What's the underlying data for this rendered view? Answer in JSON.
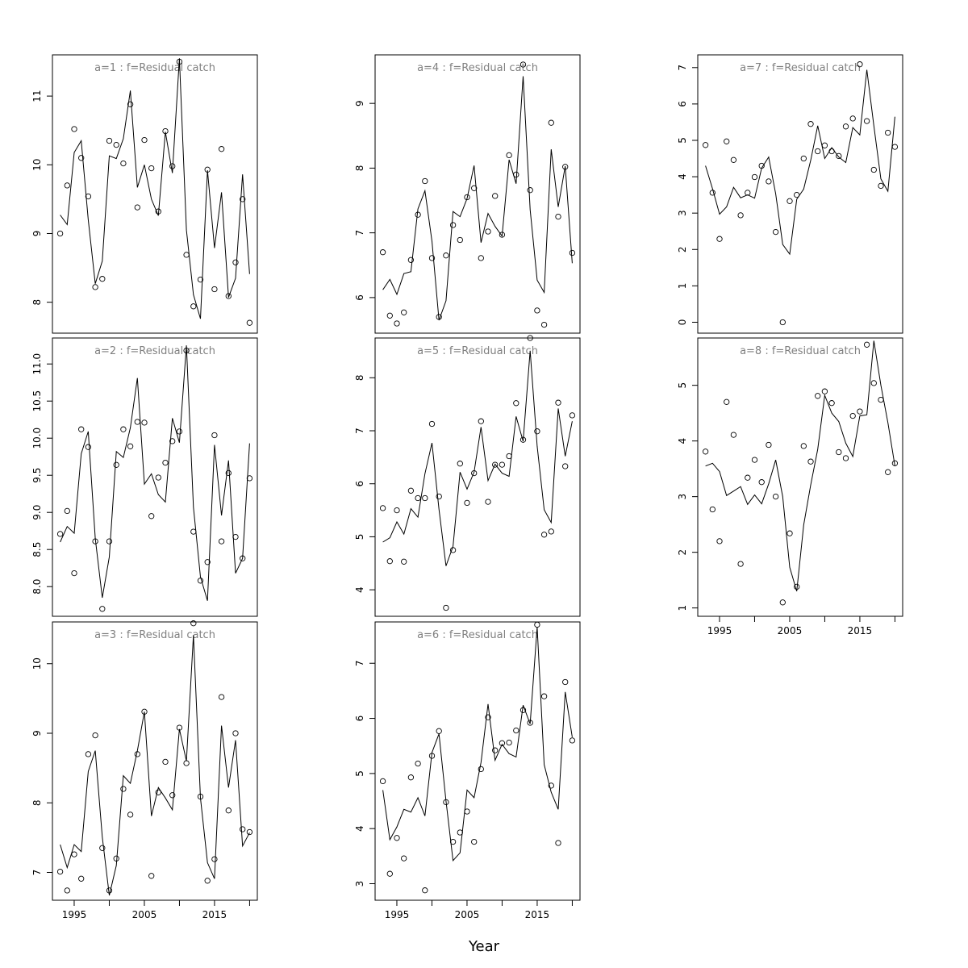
{
  "figure": {
    "xlabel": "Year"
  },
  "colors": {
    "line": "#000000",
    "points": "#000000",
    "title": "#808080",
    "background": "#ffffff"
  },
  "chart_data": [
    {
      "type": "scatter",
      "title": "a=1  :  f=Residual catch",
      "x": [
        1993,
        1994,
        1995,
        1996,
        1997,
        1998,
        1999,
        2000,
        2001,
        2002,
        2003,
        2004,
        2005,
        2006,
        2007,
        2008,
        2009,
        2010,
        2011,
        2012,
        2013,
        2014,
        2015,
        2016,
        2017,
        2018,
        2019,
        2020
      ],
      "series": [
        {
          "style": "points",
          "values": [
            9.0,
            9.7,
            10.52,
            10.1,
            9.54,
            8.22,
            8.34,
            10.35,
            10.29,
            10.02,
            10.88,
            9.38,
            10.36,
            9.95,
            9.32,
            10.49,
            9.98,
            11.5,
            8.69,
            7.94,
            8.33,
            9.93,
            8.19,
            10.23,
            8.09,
            8.58,
            9.5,
            7.7
          ]
        },
        {
          "style": "line",
          "values": [
            9.27,
            9.13,
            10.18,
            10.35,
            9.2,
            8.27,
            8.6,
            10.13,
            10.09,
            10.38,
            11.08,
            9.67,
            10.0,
            9.5,
            9.26,
            10.48,
            9.88,
            11.55,
            9.05,
            8.11,
            7.76,
            9.92,
            8.79,
            9.6,
            8.07,
            8.35,
            9.86,
            8.41
          ]
        }
      ],
      "yticks": [
        8,
        9,
        10,
        11
      ],
      "ylim": [
        7.55,
        11.6
      ],
      "xlim": [
        1991.9,
        2021.1
      ],
      "show_xticks": false
    },
    {
      "type": "scatter",
      "title": "a=2  :  f=Residual catch",
      "x": [
        1993,
        1994,
        1995,
        1996,
        1997,
        1998,
        1999,
        2000,
        2001,
        2002,
        2003,
        2004,
        2005,
        2006,
        2007,
        2008,
        2009,
        2010,
        2011,
        2012,
        2013,
        2014,
        2015,
        2016,
        2017,
        2018,
        2019,
        2020
      ],
      "series": [
        {
          "style": "points",
          "values": [
            8.71,
            9.02,
            8.18,
            10.12,
            9.88,
            8.61,
            7.7,
            8.61,
            9.64,
            10.12,
            9.89,
            10.22,
            10.21,
            8.95,
            9.47,
            9.67,
            9.96,
            10.09,
            11.18,
            8.74,
            8.08,
            8.33,
            10.04,
            8.61,
            9.53,
            8.67,
            8.38,
            9.46
          ]
        },
        {
          "style": "line",
          "values": [
            8.6,
            8.81,
            8.72,
            9.79,
            10.09,
            8.65,
            7.85,
            8.4,
            9.82,
            9.74,
            10.14,
            10.81,
            9.38,
            9.52,
            9.24,
            9.14,
            10.27,
            9.94,
            11.25,
            9.07,
            8.13,
            7.81,
            9.91,
            8.96,
            9.7,
            8.18,
            8.38,
            9.93
          ]
        }
      ],
      "yticks": [
        8.0,
        8.5,
        9.0,
        9.5,
        10.0,
        10.5,
        11.0
      ],
      "ytick_labels": [
        "8.0",
        "8.5",
        "9.0",
        "9.5",
        "10.0",
        "10.5",
        "11.0"
      ],
      "ylim": [
        7.6,
        11.35
      ],
      "xlim": [
        1991.9,
        2021.1
      ],
      "show_xticks": false
    },
    {
      "type": "scatter",
      "title": "a=3  :  f=Residual catch",
      "x": [
        1993,
        1994,
        1995,
        1996,
        1997,
        1998,
        1999,
        2000,
        2001,
        2002,
        2003,
        2004,
        2005,
        2006,
        2007,
        2008,
        2009,
        2010,
        2011,
        2012,
        2013,
        2014,
        2015,
        2016,
        2017,
        2018,
        2019,
        2020
      ],
      "series": [
        {
          "style": "points",
          "values": [
            7.01,
            6.74,
            7.26,
            6.91,
            8.7,
            8.97,
            7.35,
            6.74,
            7.2,
            8.2,
            7.83,
            8.7,
            9.31,
            6.95,
            8.15,
            8.59,
            8.11,
            9.08,
            8.57,
            10.58,
            8.09,
            6.88,
            7.19,
            9.52,
            7.89,
            9.0,
            7.62,
            7.58
          ]
        },
        {
          "style": "line",
          "values": [
            7.4,
            7.07,
            7.4,
            7.3,
            8.45,
            8.75,
            7.51,
            6.67,
            7.1,
            8.39,
            8.28,
            8.75,
            9.31,
            7.81,
            8.22,
            8.07,
            7.9,
            9.06,
            8.6,
            10.41,
            8.07,
            7.14,
            6.91,
            9.11,
            8.22,
            8.9,
            7.38,
            7.57
          ]
        }
      ],
      "yticks": [
        7,
        8,
        9,
        10
      ],
      "ylim": [
        6.6,
        10.6
      ],
      "xlim": [
        1991.9,
        2021.1
      ],
      "xticks": [
        1995,
        2005,
        2015
      ],
      "show_xticks": true
    },
    {
      "type": "scatter",
      "title": "a=4  :  f=Residual catch",
      "x": [
        1993,
        1994,
        1995,
        1996,
        1997,
        1998,
        1999,
        2000,
        2001,
        2002,
        2003,
        2004,
        2005,
        2006,
        2007,
        2008,
        2009,
        2010,
        2011,
        2012,
        2013,
        2014,
        2015,
        2016,
        2017,
        2018,
        2019,
        2020
      ],
      "series": [
        {
          "style": "points",
          "values": [
            6.7,
            5.72,
            5.6,
            5.77,
            6.58,
            7.28,
            7.8,
            6.61,
            5.7,
            6.65,
            7.12,
            6.89,
            7.55,
            7.69,
            6.61,
            7.02,
            7.57,
            6.97,
            8.2,
            7.9,
            9.6,
            7.66,
            5.8,
            5.58,
            8.7,
            7.25,
            8.02,
            6.69
          ]
        },
        {
          "style": "line",
          "values": [
            6.12,
            6.28,
            6.05,
            6.37,
            6.4,
            7.37,
            7.65,
            6.87,
            5.65,
            5.95,
            7.33,
            7.25,
            7.53,
            8.04,
            6.85,
            7.3,
            7.1,
            6.95,
            8.13,
            7.76,
            9.42,
            7.36,
            6.27,
            6.08,
            8.29,
            7.4,
            8.03,
            6.53
          ]
        }
      ],
      "yticks": [
        6,
        7,
        8,
        9
      ],
      "ylim": [
        5.45,
        9.75
      ],
      "xlim": [
        1991.9,
        2021.1
      ],
      "show_xticks": false
    },
    {
      "type": "scatter",
      "title": "a=5  :  f=Residual catch",
      "x": [
        1993,
        1994,
        1995,
        1996,
        1997,
        1998,
        1999,
        2000,
        2001,
        2002,
        2003,
        2004,
        2005,
        2006,
        2007,
        2008,
        2009,
        2010,
        2011,
        2012,
        2013,
        2014,
        2015,
        2016,
        2017,
        2018,
        2019,
        2020
      ],
      "series": [
        {
          "style": "points",
          "values": [
            5.54,
            4.54,
            5.5,
            4.53,
            5.87,
            5.73,
            5.73,
            7.13,
            5.76,
            3.66,
            4.75,
            6.38,
            5.64,
            6.2,
            7.18,
            5.66,
            6.36,
            6.36,
            6.52,
            7.52,
            6.83,
            8.75,
            6.99,
            5.04,
            5.1,
            7.53,
            6.33,
            7.29
          ]
        },
        {
          "style": "line",
          "values": [
            4.9,
            4.98,
            5.28,
            5.05,
            5.53,
            5.37,
            6.19,
            6.77,
            5.52,
            4.45,
            4.82,
            6.22,
            5.9,
            6.22,
            7.07,
            6.06,
            6.37,
            6.2,
            6.14,
            7.27,
            6.8,
            8.51,
            6.71,
            5.51,
            5.27,
            7.42,
            6.52,
            7.18
          ]
        }
      ],
      "yticks": [
        4,
        5,
        6,
        7,
        8
      ],
      "ylim": [
        3.5,
        8.75
      ],
      "xlim": [
        1991.9,
        2021.1
      ],
      "show_xticks": false
    },
    {
      "type": "scatter",
      "title": "a=6  :  f=Residual catch",
      "x": [
        1993,
        1994,
        1995,
        1996,
        1997,
        1998,
        1999,
        2000,
        2001,
        2002,
        2003,
        2004,
        2005,
        2006,
        2007,
        2008,
        2009,
        2010,
        2011,
        2012,
        2013,
        2014,
        2015,
        2016,
        2017,
        2018,
        2019,
        2020
      ],
      "series": [
        {
          "style": "points",
          "values": [
            4.86,
            3.18,
            3.83,
            3.46,
            4.93,
            5.18,
            2.88,
            5.32,
            5.77,
            4.48,
            3.76,
            3.93,
            4.31,
            3.76,
            5.08,
            6.02,
            5.42,
            5.55,
            5.56,
            5.78,
            6.15,
            5.92,
            7.7,
            6.4,
            4.78,
            3.74,
            6.66,
            5.6
          ]
        },
        {
          "style": "line",
          "values": [
            4.7,
            3.8,
            4.03,
            4.35,
            4.3,
            4.56,
            4.23,
            5.38,
            5.72,
            4.5,
            3.42,
            3.56,
            4.7,
            4.56,
            5.2,
            6.26,
            5.24,
            5.53,
            5.36,
            5.3,
            6.24,
            5.9,
            7.66,
            5.16,
            4.66,
            4.35,
            6.48,
            5.66
          ]
        }
      ],
      "yticks": [
        3,
        4,
        5,
        6,
        7
      ],
      "ylim": [
        2.7,
        7.75
      ],
      "xlim": [
        1991.9,
        2021.1
      ],
      "xticks": [
        1995,
        2005,
        2015
      ],
      "show_xticks": true
    },
    {
      "type": "scatter",
      "title": "a=7  :  f=Residual catch",
      "x": [
        1993,
        1994,
        1995,
        1996,
        1997,
        1998,
        1999,
        2000,
        2001,
        2002,
        2003,
        2004,
        2005,
        2006,
        2007,
        2008,
        2009,
        2010,
        2011,
        2012,
        2013,
        2014,
        2015,
        2016,
        2017,
        2018,
        2019,
        2020
      ],
      "series": [
        {
          "style": "points",
          "values": [
            4.87,
            3.56,
            2.29,
            4.97,
            4.46,
            2.94,
            3.56,
            3.99,
            4.3,
            3.87,
            2.48,
            0.0,
            3.33,
            3.5,
            4.5,
            5.45,
            4.7,
            4.86,
            4.7,
            4.57,
            5.38,
            5.6,
            7.09,
            5.53,
            4.19,
            3.75,
            5.21,
            4.82
          ]
        },
        {
          "style": "line",
          "values": [
            4.3,
            3.67,
            2.97,
            3.17,
            3.71,
            3.42,
            3.5,
            3.41,
            4.24,
            4.54,
            3.53,
            2.14,
            1.87,
            3.38,
            3.66,
            4.45,
            5.4,
            4.5,
            4.8,
            4.54,
            4.39,
            5.35,
            5.15,
            6.94,
            5.4,
            3.94,
            3.6,
            5.65
          ]
        }
      ],
      "yticks": [
        0,
        1,
        2,
        3,
        4,
        5,
        6,
        7
      ],
      "ylim": [
        -0.3,
        7.35
      ],
      "xlim": [
        1991.9,
        2021.1
      ],
      "show_xticks": false
    },
    {
      "type": "scatter",
      "title": "a=8  :  f=Residual catch",
      "x": [
        1993,
        1994,
        1995,
        1996,
        1997,
        1998,
        1999,
        2000,
        2001,
        2002,
        2003,
        2004,
        2005,
        2006,
        2007,
        2008,
        2009,
        2010,
        2011,
        2012,
        2013,
        2014,
        2015,
        2016,
        2017,
        2018,
        2019,
        2020
      ],
      "series": [
        {
          "style": "points",
          "values": [
            3.81,
            2.77,
            2.2,
            4.7,
            4.11,
            1.79,
            3.34,
            3.66,
            3.26,
            3.93,
            3.0,
            1.1,
            2.34,
            1.38,
            3.91,
            3.63,
            4.81,
            4.89,
            4.68,
            3.8,
            3.69,
            4.45,
            4.53,
            5.73,
            5.04,
            4.74,
            3.44,
            3.6
          ]
        },
        {
          "style": "line",
          "values": [
            3.55,
            3.6,
            3.45,
            3.02,
            3.1,
            3.18,
            2.86,
            3.03,
            2.87,
            3.23,
            3.66,
            3.0,
            1.73,
            1.3,
            2.49,
            3.21,
            3.85,
            4.82,
            4.5,
            4.35,
            3.96,
            3.72,
            4.45,
            4.47,
            5.8,
            5.0,
            4.33,
            3.55
          ]
        }
      ],
      "yticks": [
        1,
        2,
        3,
        4,
        5
      ],
      "ylim": [
        0.85,
        5.85
      ],
      "xlim": [
        1991.9,
        2021.1
      ],
      "xticks": [
        1995,
        2005,
        2015
      ],
      "show_xticks": true
    }
  ]
}
